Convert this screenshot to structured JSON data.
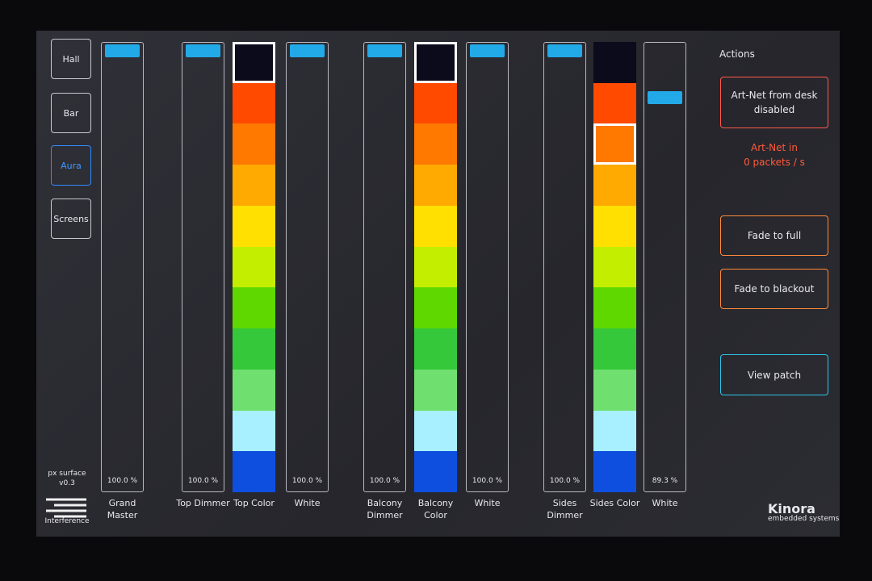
{
  "nav": [
    {
      "label": "Hall",
      "active": false
    },
    {
      "label": "Bar",
      "active": false
    },
    {
      "label": "Aura",
      "active": true
    },
    {
      "label": "Screens",
      "active": false
    }
  ],
  "version": [
    "px surface",
    "v0.3"
  ],
  "brand_left": "Interference",
  "brand_right": {
    "name": "Kinora",
    "tagline": "embedded systems"
  },
  "palette": [
    "#0b0b1c",
    "#ff4a00",
    "#ff7800",
    "#ffaa00",
    "#ffe000",
    "#c4ee00",
    "#5fd800",
    "#35c83a",
    "#6fe06f",
    "#a8f0ff",
    "#4fb4ee",
    "#0f4fe0"
  ],
  "faders": [
    {
      "label": "Grand Master",
      "type": "level",
      "value": 100.0,
      "value_label": "100.0 %"
    },
    {
      "label": "Top Dimmer",
      "type": "level",
      "value": 100.0,
      "value_label": "100.0 %"
    },
    {
      "label": "Top Color",
      "type": "color",
      "selected": 0
    },
    {
      "label": "White",
      "type": "level",
      "value": 100.0,
      "value_label": "100.0 %"
    },
    {
      "label": "Balcony Dimmer",
      "type": "level",
      "value": 100.0,
      "value_label": "100.0 %"
    },
    {
      "label": "Balcony Color",
      "type": "color",
      "selected": 0
    },
    {
      "label": "White",
      "type": "level",
      "value": 100.0,
      "value_label": "100.0 %"
    },
    {
      "label": "Sides Dimmer",
      "type": "level",
      "value": 100.0,
      "value_label": "100.0 %"
    },
    {
      "label": "Sides Color",
      "type": "color",
      "selected": 2
    },
    {
      "label": "White",
      "type": "level",
      "value": 89.3,
      "value_label": "89.3 %"
    }
  ],
  "actions": {
    "title": "Actions",
    "buttons": [
      {
        "label": "Art-Net from desk disabled",
        "color": "#ff5a4a"
      },
      {
        "label": "Fade to full",
        "color": "#ff8a3a"
      },
      {
        "label": "Fade to blackout",
        "color": "#ff8a3a"
      },
      {
        "label": "View patch",
        "color": "#2ec4e8"
      }
    ],
    "status": [
      "Art-Net in",
      "0 packets / s"
    ]
  }
}
